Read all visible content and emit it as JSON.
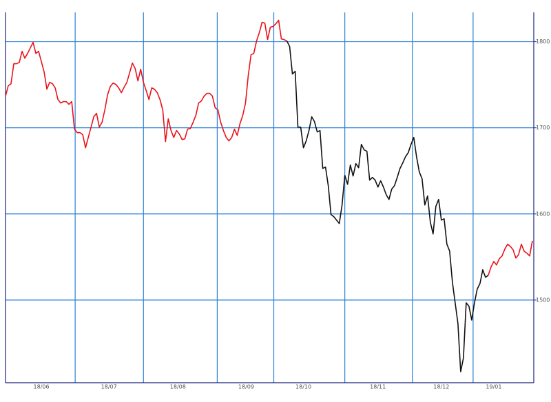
{
  "chart_data": {
    "type": "line",
    "xlim": [
      0,
      191
    ],
    "ylim": [
      1404,
      1834
    ],
    "yticks": [
      1500,
      1600,
      1700,
      1800
    ],
    "xticks": [
      25.25,
      50,
      76.75,
      97.25,
      123,
      147.5,
      169.5
    ],
    "xlabels": [
      {
        "value": 13,
        "label": "18/06"
      },
      {
        "value": 37.5,
        "label": "18/07"
      },
      {
        "value": 62.5,
        "label": "18/08"
      },
      {
        "value": 87.25,
        "label": "18/09"
      },
      {
        "value": 108,
        "label": "18/10"
      },
      {
        "value": 135,
        "label": "18/11"
      },
      {
        "value": 158,
        "label": "18/12"
      },
      {
        "value": 177,
        "label": "19/01"
      }
    ],
    "grid": true,
    "grid_color": "#2a7fd8",
    "axis_color": "#1a237e",
    "series": [
      {
        "color": "#e8131a",
        "values": [
          1736.8,
          1748.8,
          1751.2,
          1774.4,
          1774.4,
          1776,
          1788.8,
          1780.8,
          1786.4,
          1792.8,
          1799.2,
          1786.4,
          1788.8,
          1776.8,
          1764.8,
          1744.8,
          1752.8,
          1751.2,
          1746.4,
          1732.8,
          1728.8,
          1730.4,
          1730.4,
          1727.2,
          1730.4,
          1698.4,
          1694.4,
          1694.4,
          1692,
          1676.8,
          1688.8,
          1700.8,
          1712.8,
          1716.8,
          1700.8,
          1706.4,
          1720.8,
          1738.4,
          1748,
          1752,
          1750.4,
          1746.4,
          1740.8,
          1747.2,
          1752.8,
          1764,
          1775.2,
          1768.8,
          1754.4,
          1768,
          1752.8,
          1743.2,
          1732.8,
          1746.4,
          1744.8,
          1740.8,
          1732.8,
          1720.8,
          1684,
          1710.4,
          1696.8,
          1688.8,
          1696.8,
          1692.8,
          1686.4,
          1687.2,
          1698.4,
          1699.2,
          1706.4,
          1714.4,
          1728.8,
          1731.2,
          1736.8,
          1740,
          1740,
          1736.8,
          1723.2,
          1720.8,
          1706.4,
          1696.8,
          1688.8,
          1684.8,
          1688.8,
          1698.4,
          1691.2,
          1704.8,
          1714.4,
          1728.8,
          1760.8,
          1784.8,
          1786.4,
          1800.8,
          1810.4,
          1822.4,
          1821.6,
          1802.4,
          1816.8,
          1817.6,
          1820.8,
          1824.8,
          1803.2,
          1802.4,
          1800.8,
          null,
          null,
          null,
          null,
          null,
          null,
          null,
          null,
          null,
          null,
          null,
          null,
          null,
          null,
          null,
          null,
          null,
          null,
          null,
          null,
          null,
          null,
          null,
          null,
          null,
          null,
          null,
          null,
          null,
          null,
          null,
          null,
          null,
          null,
          null,
          null,
          null,
          null,
          null,
          null,
          null,
          null,
          null,
          null,
          null,
          null,
          null,
          null,
          null,
          null,
          null,
          null,
          null,
          null,
          null,
          null,
          null,
          null,
          null,
          null,
          null,
          null,
          null,
          null,
          null,
          null,
          null,
          null,
          null,
          null,
          null,
          null,
          1528.8,
          1538.4,
          1544.8,
          1540.8,
          1548,
          1551.2,
          1559.2,
          1564.8,
          1562.4,
          1558.4,
          1548.8,
          1552.8,
          1564.8,
          1556.8,
          1554.4,
          1551.2,
          1568.8
        ]
      },
      {
        "color": "#111111",
        "values": [
          null,
          null,
          null,
          null,
          null,
          null,
          null,
          null,
          null,
          null,
          null,
          null,
          null,
          null,
          null,
          null,
          null,
          null,
          null,
          null,
          null,
          null,
          null,
          null,
          null,
          null,
          null,
          null,
          null,
          null,
          null,
          null,
          null,
          null,
          null,
          null,
          null,
          null,
          null,
          null,
          null,
          null,
          null,
          null,
          null,
          null,
          null,
          null,
          null,
          null,
          null,
          null,
          null,
          null,
          null,
          null,
          null,
          null,
          null,
          null,
          null,
          null,
          null,
          null,
          null,
          null,
          null,
          null,
          null,
          null,
          null,
          null,
          null,
          null,
          null,
          null,
          null,
          null,
          null,
          null,
          null,
          null,
          null,
          null,
          null,
          null,
          null,
          null,
          null,
          null,
          null,
          null,
          null,
          null,
          null,
          null,
          null,
          null,
          null,
          null,
          null,
          null,
          1800.8,
          1794.4,
          1762.4,
          1765.6,
          1700.8,
          1700.8,
          1676.8,
          1684.8,
          1696.8,
          1712.8,
          1707.2,
          1695.2,
          1696.8,
          1652.8,
          1654.4,
          1632.8,
          1599.2,
          1596.8,
          1592.8,
          1588.8,
          1610.4,
          1644.8,
          1634.4,
          1656.8,
          1644,
          1658.4,
          1653.6,
          1680.8,
          1674.4,
          1672.8,
          1639.2,
          1642.4,
          1639.2,
          1631.2,
          1638.4,
          1631.2,
          1622.4,
          1616.8,
          1628.8,
          1632.8,
          1642.4,
          1652.8,
          1659.2,
          1666.4,
          1671.2,
          1680.8,
          1688.8,
          1666.4,
          1648.8,
          1640.8,
          1610.4,
          1620.8,
          1590.4,
          1576.8,
          1608.8,
          1616.8,
          1592.8,
          1594.4,
          1564.8,
          1556.8,
          1520.8,
          1496.8,
          1472.8,
          1416.8,
          1432.8,
          1496.8,
          1492.8,
          1476.8,
          1496.8,
          1512.8,
          1519.2,
          1535.2,
          1526.4,
          1528.8,
          null,
          null,
          null,
          null,
          null,
          null,
          null,
          null,
          null,
          null,
          null,
          null,
          null,
          null,
          null,
          null
        ]
      }
    ]
  }
}
